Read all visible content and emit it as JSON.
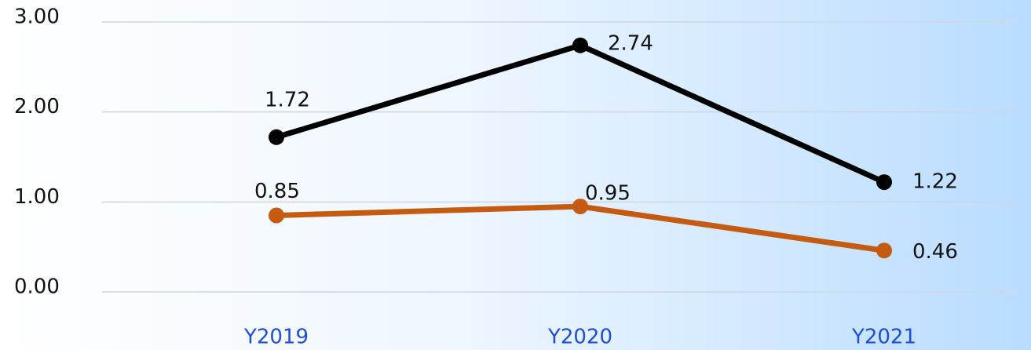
{
  "chart_data": {
    "type": "line",
    "categories": [
      "Y2019",
      "Y2020",
      "Y2021"
    ],
    "series": [
      {
        "color": "#000000",
        "values": [
          1.72,
          2.74,
          1.22
        ]
      },
      {
        "color": "#c55a11",
        "values": [
          0.85,
          0.95,
          0.46
        ]
      }
    ],
    "ylim": [
      0,
      3
    ],
    "yticks": [
      {
        "value": 0,
        "label": "0.00"
      },
      {
        "value": 1,
        "label": "1.00"
      },
      {
        "value": 2,
        "label": "2.00"
      },
      {
        "value": 3,
        "label": "3.00"
      }
    ],
    "grid": true
  }
}
